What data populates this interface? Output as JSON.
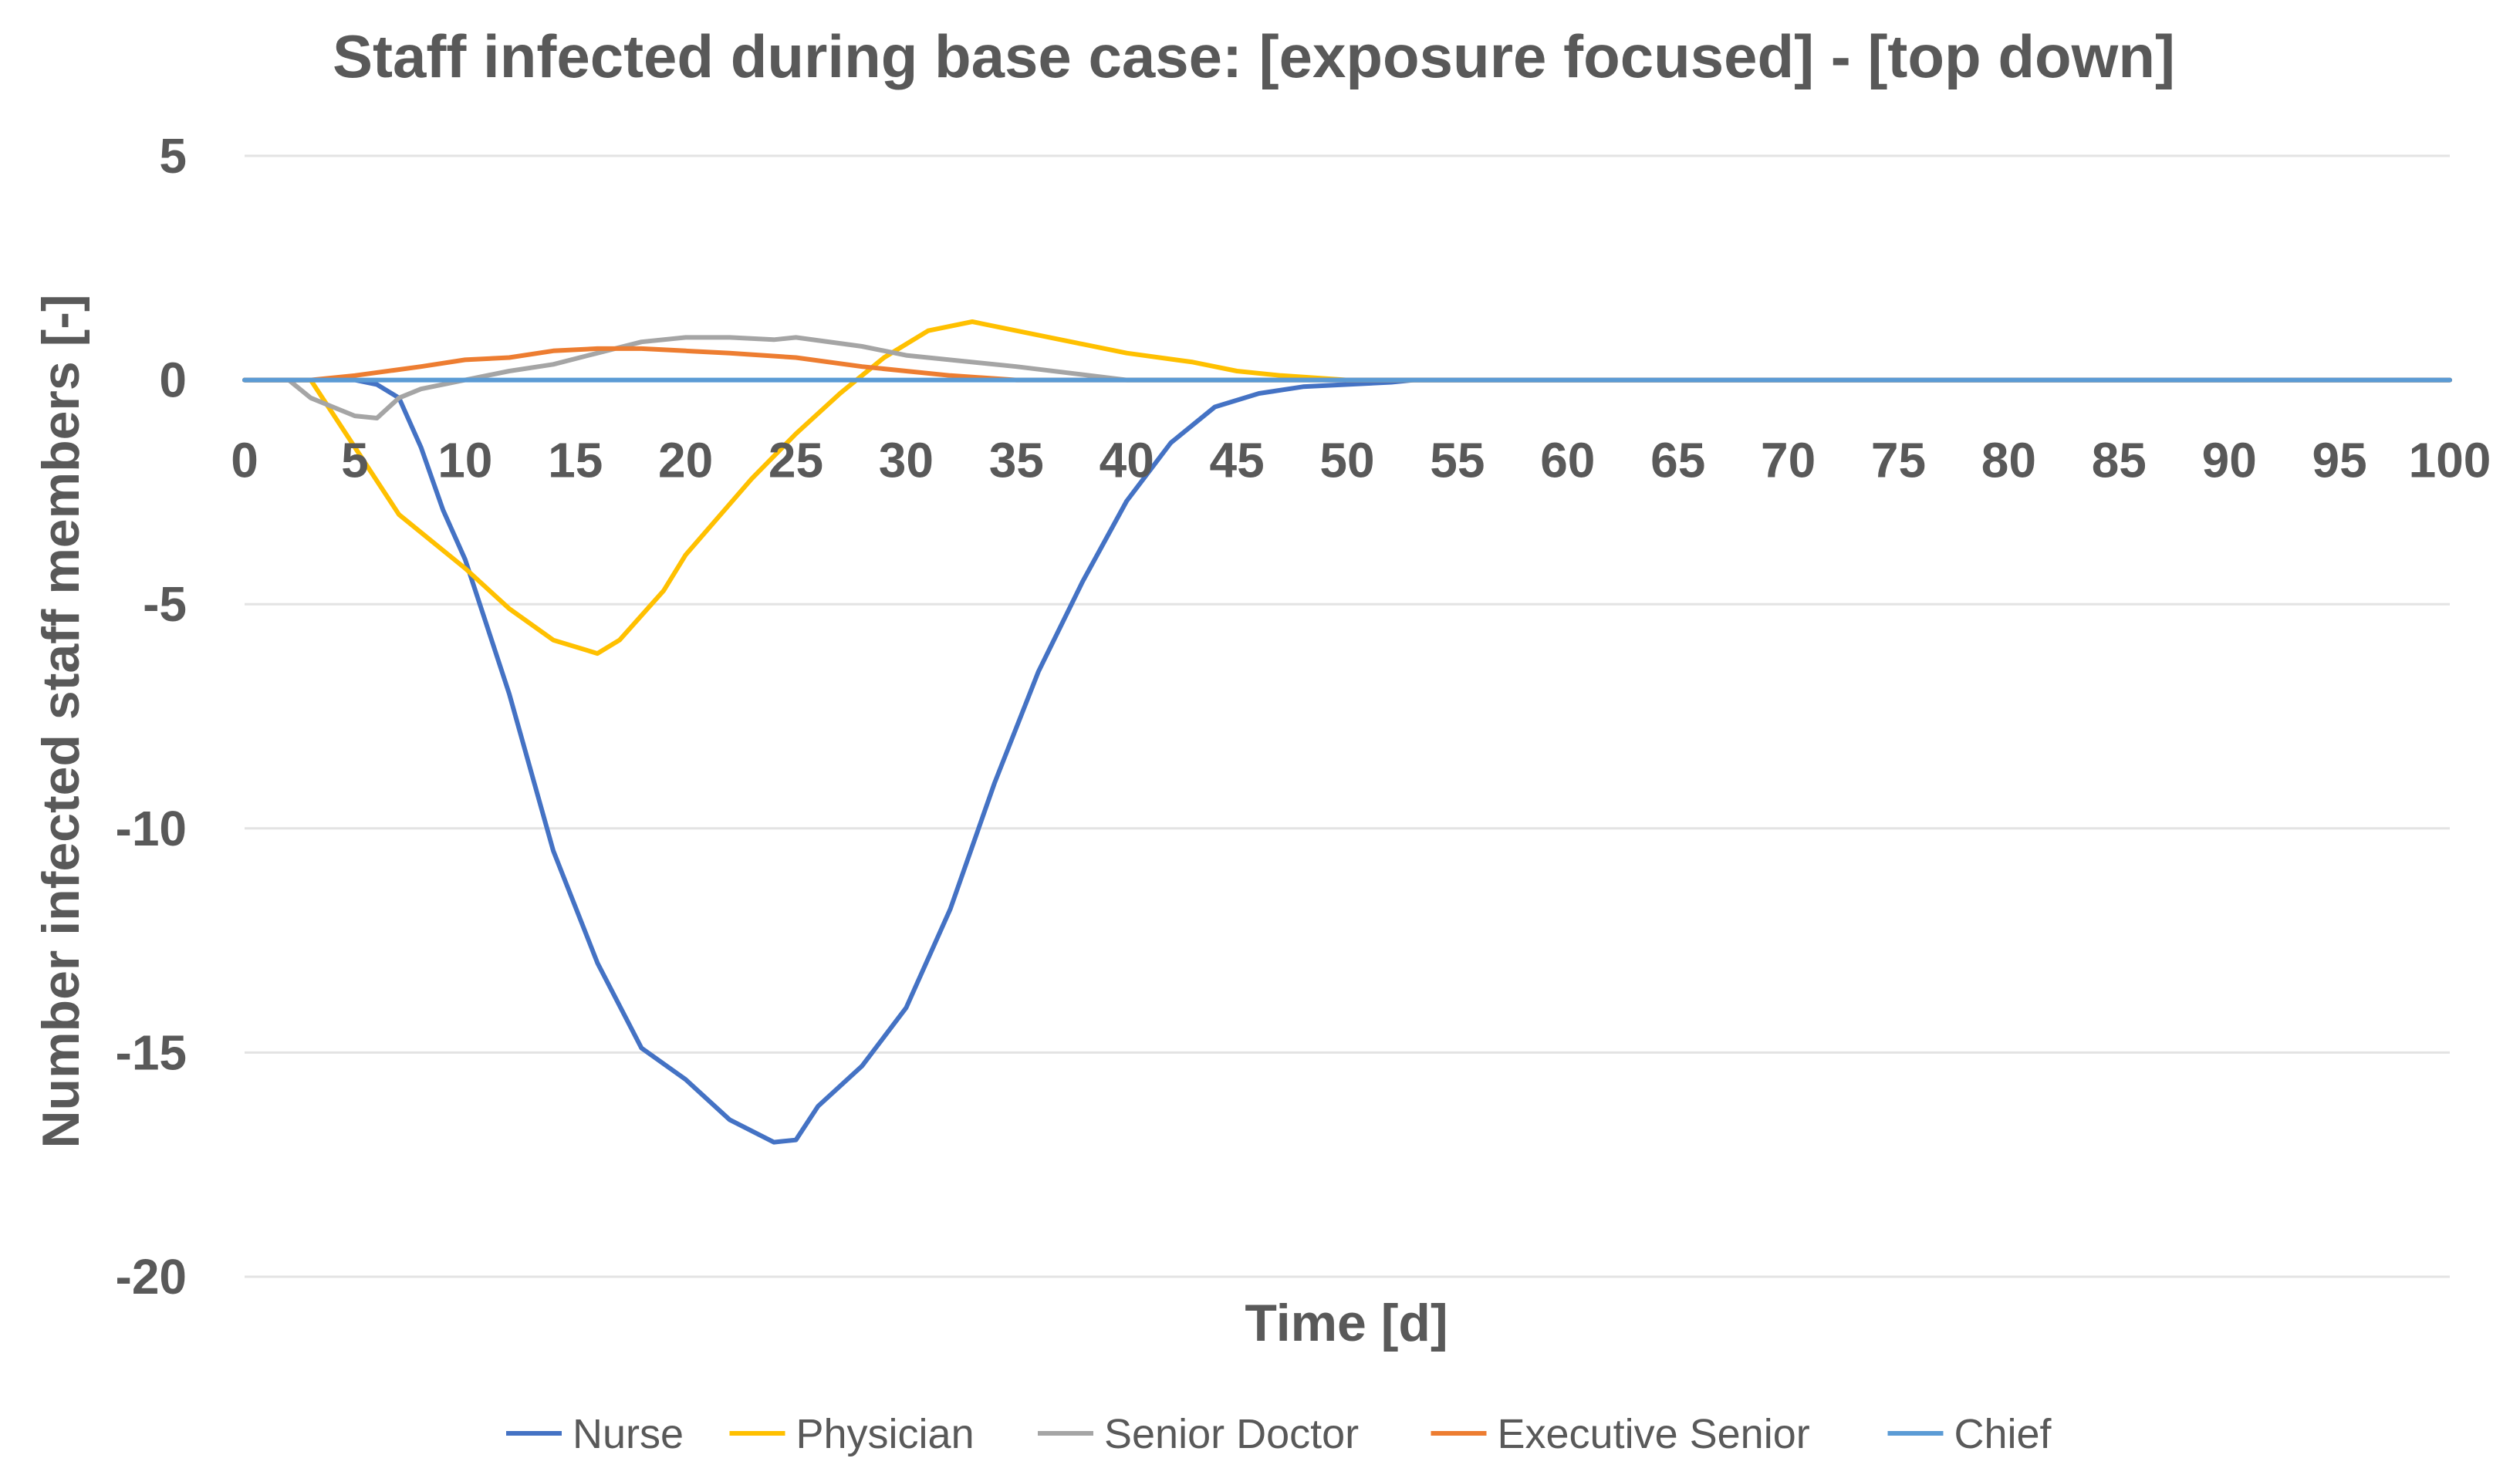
{
  "chart_data": {
    "type": "line",
    "title": "Staff infected during base case: [exposure focused] - [top down]",
    "xlabel": "Time [d]",
    "ylabel": "Number infected staff members [-]",
    "xlim": [
      0,
      100
    ],
    "ylim": [
      -20,
      5
    ],
    "x_ticks": [
      "0",
      "5",
      "10",
      "15",
      "20",
      "25",
      "30",
      "35",
      "40",
      "45",
      "50",
      "55",
      "60",
      "65",
      "70",
      "75",
      "80",
      "85",
      "90",
      "95",
      "100"
    ],
    "y_ticks": [
      "5",
      "0",
      "-5",
      "-10",
      "-15",
      "-20"
    ],
    "y_tick_values": [
      5,
      0,
      -5,
      -10,
      -15,
      -20
    ],
    "legend_position": "bottom",
    "series": [
      {
        "name": "Nurse",
        "color": "#4472C4",
        "x": [
          0,
          3,
          5,
          6,
          7,
          8,
          9,
          10,
          12,
          14,
          16,
          18,
          20,
          22,
          24,
          25,
          26,
          28,
          30,
          32,
          34,
          36,
          38,
          40,
          42,
          44,
          46,
          48,
          50,
          52,
          53,
          55,
          60,
          65,
          67,
          100
        ],
        "y": [
          0,
          0,
          0,
          -0.1,
          -0.4,
          -1.5,
          -2.9,
          -4.0,
          -7.0,
          -10.5,
          -13.0,
          -14.9,
          -15.6,
          -16.5,
          -17.0,
          -16.95,
          -16.2,
          -15.3,
          -14.0,
          -11.8,
          -9.0,
          -6.5,
          -4.5,
          -2.7,
          -1.4,
          -0.6,
          -0.3,
          -0.15,
          -0.1,
          -0.05,
          0,
          0,
          0,
          0,
          0,
          0
        ]
      },
      {
        "name": "Physician",
        "color": "#FFC000",
        "x": [
          0,
          3,
          5,
          7,
          10,
          12,
          14,
          16,
          17,
          19,
          20,
          23,
          25,
          27,
          29,
          31,
          33,
          35,
          38,
          40,
          43,
          45,
          47,
          50,
          100
        ],
        "y": [
          0,
          0,
          -1.5,
          -3.0,
          -4.2,
          -5.1,
          -5.8,
          -6.1,
          -5.8,
          -4.7,
          -3.9,
          -2.2,
          -1.2,
          -0.3,
          0.5,
          1.1,
          1.3,
          1.1,
          0.8,
          0.6,
          0.4,
          0.2,
          0.1,
          0,
          0
        ]
      },
      {
        "name": "Senior Doctor",
        "color": "#A5A5A5",
        "x": [
          0,
          2,
          3,
          4,
          5,
          6,
          7,
          8,
          10,
          12,
          14,
          16,
          18,
          20,
          22,
          24,
          25,
          28,
          30,
          35,
          40,
          100
        ],
        "y": [
          0,
          0,
          -0.4,
          -0.6,
          -0.8,
          -0.85,
          -0.4,
          -0.2,
          0,
          0.2,
          0.35,
          0.6,
          0.85,
          0.95,
          0.95,
          0.9,
          0.95,
          0.75,
          0.55,
          0.3,
          0,
          0
        ]
      },
      {
        "name": "Executive Senior",
        "color": "#ED7D31",
        "x": [
          0,
          3,
          5,
          8,
          10,
          12,
          14,
          16,
          18,
          20,
          22,
          25,
          28,
          30,
          32,
          35,
          40,
          100
        ],
        "y": [
          0,
          0,
          0.1,
          0.3,
          0.45,
          0.5,
          0.65,
          0.7,
          0.7,
          0.65,
          0.6,
          0.5,
          0.3,
          0.2,
          0.1,
          0,
          0,
          0
        ]
      },
      {
        "name": "Chief",
        "color": "#5B9BD5",
        "x": [
          0,
          100
        ],
        "y": [
          0,
          0
        ]
      }
    ]
  }
}
